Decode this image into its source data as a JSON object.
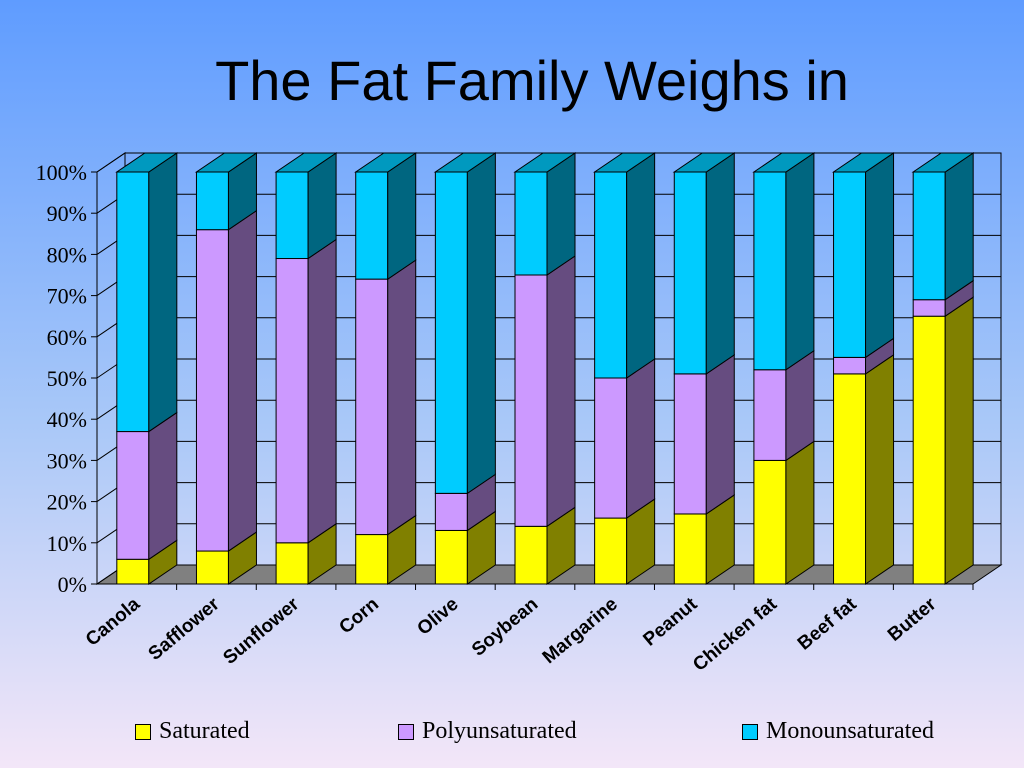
{
  "chart_data": {
    "type": "bar",
    "stacked": true,
    "percent_stacked": true,
    "three_d": true,
    "title": "The Fat Family Weighs in",
    "categories": [
      "Canola",
      "Safflower",
      "Sunflower",
      "Corn",
      "Olive",
      "Soybean",
      "Margarine",
      "Peanut",
      "Chicken fat",
      "Beef fat",
      "Butter"
    ],
    "series": [
      {
        "name": "Saturated",
        "color": "#ffff00",
        "side_color": "#808000",
        "values": [
          6,
          8,
          10,
          12,
          13,
          14,
          16,
          17,
          30,
          51,
          65
        ]
      },
      {
        "name": "Polyunsaturated",
        "color": "#cc99ff",
        "side_color": "#664c80",
        "values": [
          31,
          78,
          69,
          62,
          9,
          61,
          34,
          34,
          22,
          4,
          4
        ]
      },
      {
        "name": "Monounsaturated",
        "color": "#00ccff",
        "side_color": "#006680",
        "values": [
          63,
          14,
          21,
          26,
          78,
          25,
          50,
          49,
          48,
          45,
          31
        ]
      }
    ],
    "y_ticks": [
      "0%",
      "10%",
      "20%",
      "30%",
      "40%",
      "50%",
      "60%",
      "70%",
      "80%",
      "90%",
      "100%"
    ],
    "ylim": [
      0,
      100
    ],
    "grid": true,
    "legend_position": "bottom"
  }
}
